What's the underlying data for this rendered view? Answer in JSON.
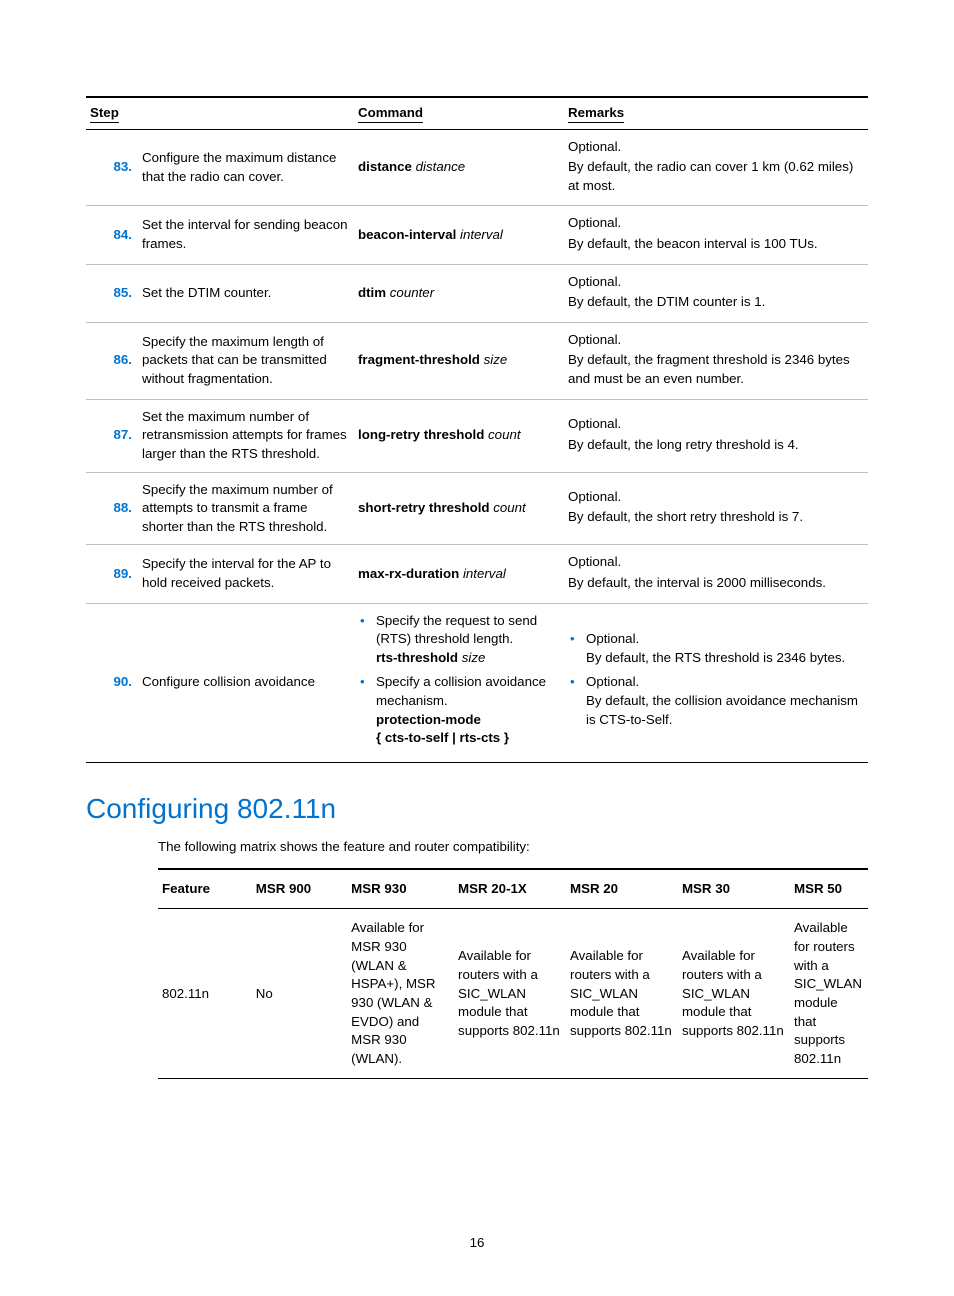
{
  "stepTable": {
    "headers": {
      "step": "Step",
      "command": "Command",
      "remarks": "Remarks"
    },
    "rows": [
      {
        "num": "83.",
        "step": "Configure the maximum distance that the radio can cover.",
        "cmd_b": "distance",
        "cmd_i": "distance",
        "r1": "Optional.",
        "r2": "By default, the radio can cover 1 km (0.62 miles) at most."
      },
      {
        "num": "84.",
        "step": "Set the interval for sending beacon frames.",
        "cmd_b": "beacon-interval",
        "cmd_i": "interval",
        "r1": "Optional.",
        "r2": "By default, the beacon interval is 100 TUs."
      },
      {
        "num": "85.",
        "step": "Set the DTIM counter.",
        "cmd_b": "dtim",
        "cmd_i": "counter",
        "r1": "Optional.",
        "r2": "By default, the DTIM counter is 1."
      },
      {
        "num": "86.",
        "step": "Specify the maximum length of packets that can be transmitted without fragmentation.",
        "cmd_b": "fragment-threshold",
        "cmd_i": "size",
        "r1": "Optional.",
        "r2": "By default, the fragment threshold is 2346 bytes and must be an even number."
      },
      {
        "num": "87.",
        "step": "Set the maximum number of retransmission attempts for frames larger than the RTS threshold.",
        "cmd_b": "long-retry threshold",
        "cmd_i": "count",
        "r1": "Optional.",
        "r2": "By default, the long retry threshold is 4."
      },
      {
        "num": "88.",
        "step": "Specify the maximum number of attempts to transmit a frame shorter than the RTS threshold.",
        "cmd_b": "short-retry threshold",
        "cmd_i": "count",
        "r1": "Optional.",
        "r2": "By default, the short retry threshold is 7."
      },
      {
        "num": "89.",
        "step": "Specify the interval for the AP to hold received packets.",
        "cmd_b": "max-rx-duration",
        "cmd_i": "interval",
        "r1": "Optional.",
        "r2": "By default, the interval is 2000 milliseconds."
      }
    ],
    "row90": {
      "num": "90.",
      "step": "Configure collision avoidance",
      "cmd1_text": "Specify the request to send (RTS) threshold length.",
      "cmd1_b": "rts-threshold",
      "cmd1_i": "size",
      "cmd2_text": "Specify a collision avoidance mechanism.",
      "cmd2_b1": "protection-mode",
      "cmd2_b2": "{ cts-to-self | rts-cts }",
      "rem1a": "Optional.",
      "rem1b": "By default, the RTS threshold is 2346 bytes.",
      "rem2a": "Optional.",
      "rem2b": "By default, the collision avoidance mechanism is CTS-to-Self."
    }
  },
  "section": {
    "title": "Configuring 802.11n",
    "intro": "The following matrix shows the feature and router compatibility:"
  },
  "featTable": {
    "headers": {
      "feature": "Feature",
      "m900": "MSR 900",
      "m930": "MSR 930",
      "m201x": "MSR 20-1X",
      "m20": "MSR 20",
      "m30": "MSR 30",
      "m50": "MSR 50"
    },
    "row": {
      "feature": "802.11n",
      "m900": "No",
      "m930": "Available for MSR 930 (WLAN & HSPA+), MSR 930 (WLAN & EVDO) and MSR 930 (WLAN).",
      "m201x": "Available for routers with a SIC_WLAN module that supports 802.11n",
      "m20": "Available for routers with a SIC_WLAN module that supports 802.11n",
      "m30": "Available for routers with a SIC_WLAN module that supports 802.11n",
      "m50": "Available for routers with a SIC_WLAN module that supports 802.11n"
    }
  },
  "pageNumber": "16",
  "colors": {
    "accent": "#0073cf",
    "rule": "#bfbfbf"
  }
}
